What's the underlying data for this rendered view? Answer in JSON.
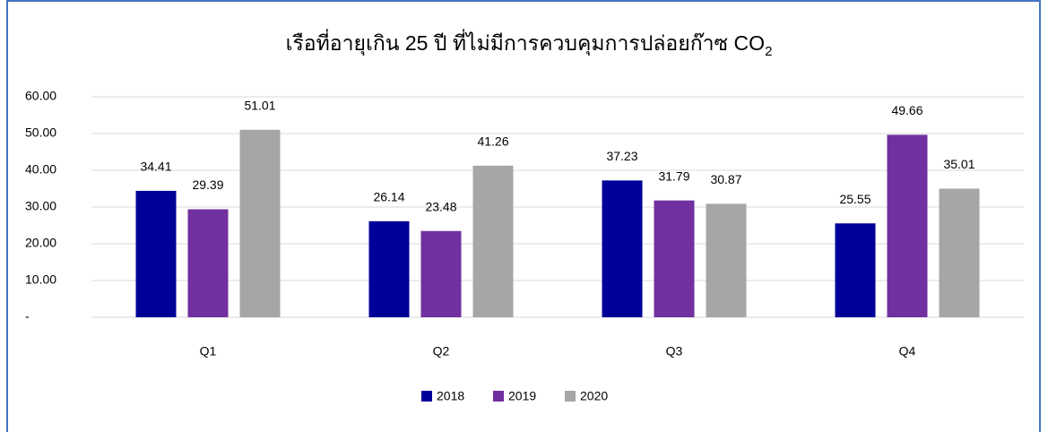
{
  "chart_data": {
    "type": "bar",
    "title": "เรือที่อายุเกิน 25 ปี ที่ไม่มีการควบคุมการปล่อยก๊าซ CO",
    "title_subscript": "2",
    "categories": [
      "Q1",
      "Q2",
      "Q3",
      "Q4"
    ],
    "series": [
      {
        "name": "2018",
        "color": "#000099",
        "values": [
          34.41,
          26.14,
          37.23,
          25.55
        ]
      },
      {
        "name": "2019",
        "color": "#7030a0",
        "values": [
          29.39,
          23.48,
          31.79,
          49.66
        ]
      },
      {
        "name": "2020",
        "color": "#a6a6a6",
        "values": [
          51.01,
          41.26,
          30.87,
          35.01
        ]
      }
    ],
    "ylim": [
      0,
      60
    ],
    "yticks": [
      {
        "value": 0,
        "label": "-"
      },
      {
        "value": 10,
        "label": "10.00"
      },
      {
        "value": 20,
        "label": "20.00"
      },
      {
        "value": 30,
        "label": "30.00"
      },
      {
        "value": 40,
        "label": "40.00"
      },
      {
        "value": 50,
        "label": "50.00"
      },
      {
        "value": 60,
        "label": "60.00"
      }
    ],
    "grid": true,
    "legend": "bottom"
  }
}
